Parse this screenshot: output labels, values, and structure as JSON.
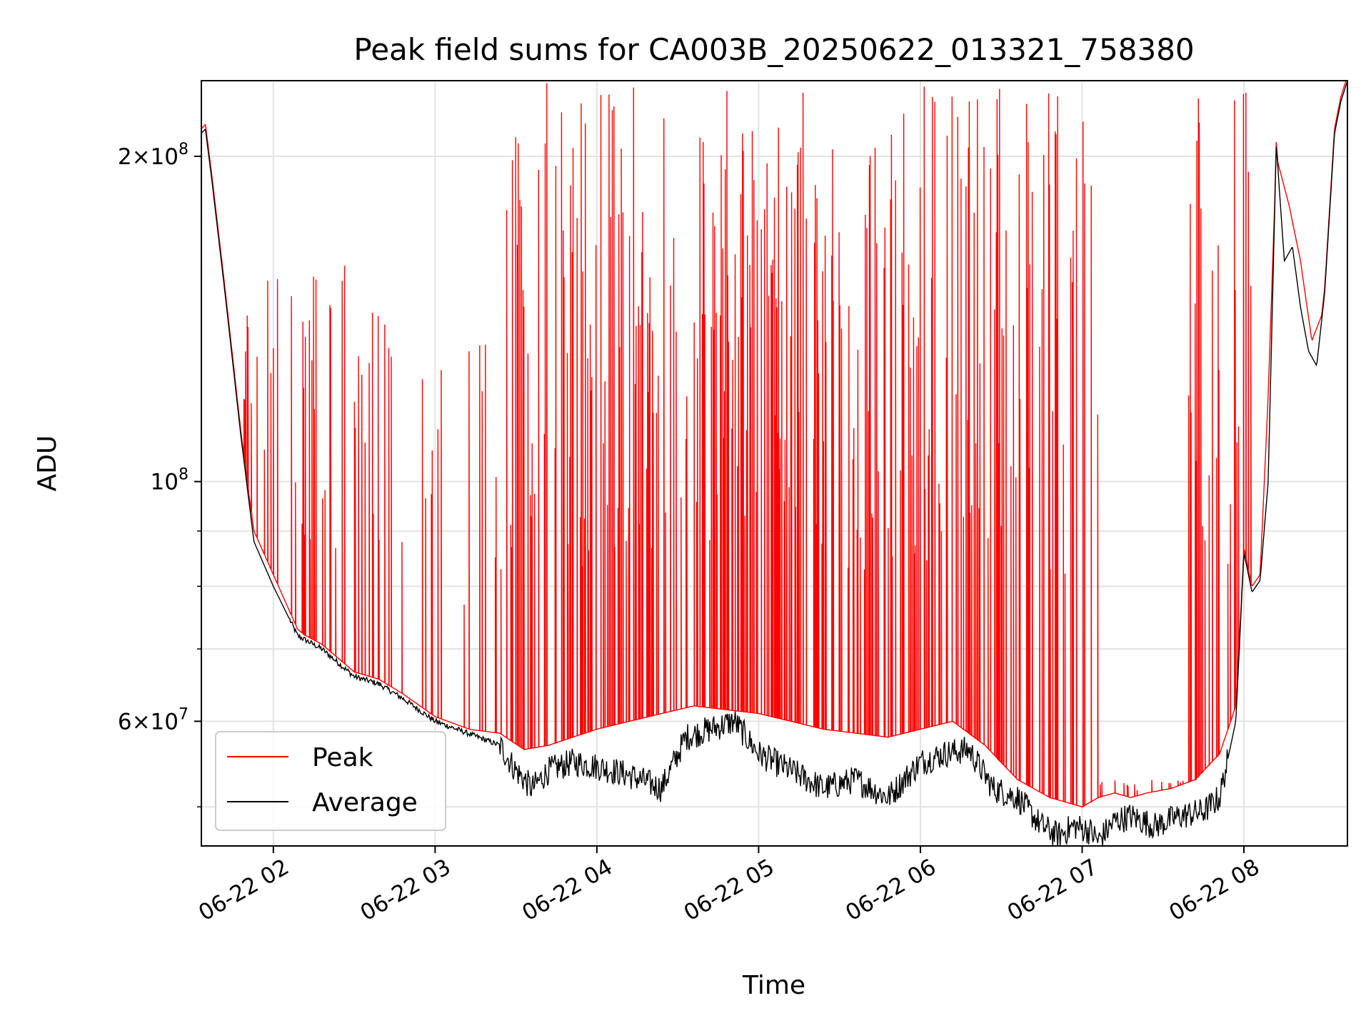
{
  "chart_data": {
    "type": "line",
    "title": "Peak field sums for CA003B_20250622_013321_758380",
    "xlabel": "Time",
    "ylabel": "ADU",
    "x_tick_labels": [
      "06-22 02",
      "06-22 03",
      "06-22 04",
      "06-22 05",
      "06-22 06",
      "06-22 07",
      "06-22 08"
    ],
    "x_tick_hours": [
      2,
      3,
      4,
      5,
      6,
      7,
      8
    ],
    "x_range_hours": [
      1.555,
      8.64
    ],
    "y_scale": "log",
    "ylim": [
      46000000,
      235000000
    ],
    "y_major_ticks": [
      {
        "value": 60000000,
        "base": "6",
        "exp": "7"
      },
      {
        "value": 100000000,
        "base": "",
        "exp": "8"
      },
      {
        "value": 200000000,
        "base": "2",
        "exp": "8"
      }
    ],
    "y_minor_ticks": [
      50000000,
      70000000,
      80000000,
      90000000
    ],
    "grid": true,
    "legend_position": "lower-left",
    "colors": {
      "peak": "#ff0000",
      "average": "#000000"
    },
    "series": [
      {
        "name": "Peak",
        "color": "#ff0000",
        "baseline_x_hours": [
          1.555,
          1.58,
          1.62,
          1.7,
          1.8,
          1.88,
          2.0,
          2.15,
          2.3,
          2.5,
          2.65,
          2.8,
          3.0,
          3.2,
          3.4,
          3.55,
          3.7,
          3.85,
          4.0,
          4.2,
          4.4,
          4.6,
          4.8,
          5.0,
          5.2,
          5.4,
          5.6,
          5.8,
          6.0,
          6.2,
          6.4,
          6.6,
          6.8,
          7.0,
          7.1,
          7.2,
          7.3,
          7.4,
          7.55,
          7.7,
          7.85,
          7.95,
          8.0,
          8.05,
          8.1,
          8.15,
          8.2,
          8.28,
          8.35,
          8.42,
          8.5,
          8.56,
          8.6,
          8.64
        ],
        "baseline_y": [
          210000000,
          212000000,
          190000000,
          150000000,
          110000000,
          90000000,
          82000000,
          73000000,
          70000000,
          66000000,
          65000000,
          63000000,
          60000000,
          59000000,
          58500000,
          56500000,
          57000000,
          58000000,
          59000000,
          60000000,
          61000000,
          62000000,
          61500000,
          61000000,
          60000000,
          59000000,
          58500000,
          58000000,
          59000000,
          60000000,
          57000000,
          53000000,
          51000000,
          50000000,
          51000000,
          51500000,
          51000000,
          51500000,
          52000000,
          53000000,
          56000000,
          62000000,
          85000000,
          80000000,
          82000000,
          120000000,
          200000000,
          180000000,
          160000000,
          135000000,
          145000000,
          195000000,
          225000000,
          235000000
        ],
        "peaks": [
          {
            "start_hour": 1.8,
            "end_hour": 3.4,
            "max_y": 160000000,
            "density": 0.35
          },
          {
            "start_hour": 3.4,
            "end_hour": 3.9,
            "max_y": 235000000,
            "density": 0.6
          },
          {
            "start_hour": 3.9,
            "end_hour": 5.3,
            "max_y": 235000000,
            "density": 0.9
          },
          {
            "start_hour": 5.3,
            "end_hour": 6.85,
            "max_y": 235000000,
            "density": 0.8
          },
          {
            "start_hour": 6.85,
            "end_hour": 7.1,
            "max_y": 235000000,
            "density": 0.4
          },
          {
            "start_hour": 7.1,
            "end_hour": 7.65,
            "max_y": 53000000,
            "density": 0.3
          },
          {
            "start_hour": 7.65,
            "end_hour": 8.05,
            "max_y": 235000000,
            "density": 0.7
          }
        ]
      },
      {
        "name": "Average",
        "color": "#000000",
        "x_hours": [
          1.555,
          1.58,
          1.62,
          1.7,
          1.8,
          1.88,
          2.0,
          2.15,
          2.3,
          2.5,
          2.65,
          2.8,
          3.0,
          3.2,
          3.4,
          3.5,
          3.6,
          3.7,
          3.85,
          4.0,
          4.2,
          4.4,
          4.55,
          4.7,
          4.85,
          5.0,
          5.2,
          5.4,
          5.6,
          5.8,
          6.0,
          6.15,
          6.3,
          6.45,
          6.6,
          6.75,
          6.85,
          6.95,
          7.05,
          7.1,
          7.2,
          7.3,
          7.45,
          7.6,
          7.75,
          7.85,
          7.95,
          8.0,
          8.05,
          8.1,
          8.15,
          8.2,
          8.25,
          8.3,
          8.35,
          8.4,
          8.45,
          8.5,
          8.56,
          8.6,
          8.64
        ],
        "y": [
          210000000,
          212000000,
          190000000,
          150000000,
          110000000,
          88000000,
          80000000,
          72000000,
          70000000,
          66000000,
          65000000,
          63000000,
          60000000,
          58500000,
          57000000,
          54000000,
          52000000,
          54000000,
          55000000,
          54500000,
          53500000,
          52000000,
          58000000,
          59000000,
          60000000,
          56000000,
          54000000,
          52000000,
          53000000,
          51000000,
          55000000,
          56000000,
          56500000,
          52000000,
          51000000,
          48000000,
          47000000,
          48000000,
          47500000,
          46500000,
          48500000,
          49000000,
          48000000,
          49000000,
          49500000,
          51000000,
          60000000,
          86000000,
          79000000,
          81000000,
          100000000,
          205000000,
          160000000,
          165000000,
          145000000,
          132000000,
          128000000,
          150000000,
          210000000,
          225000000,
          235000000
        ]
      }
    ]
  }
}
